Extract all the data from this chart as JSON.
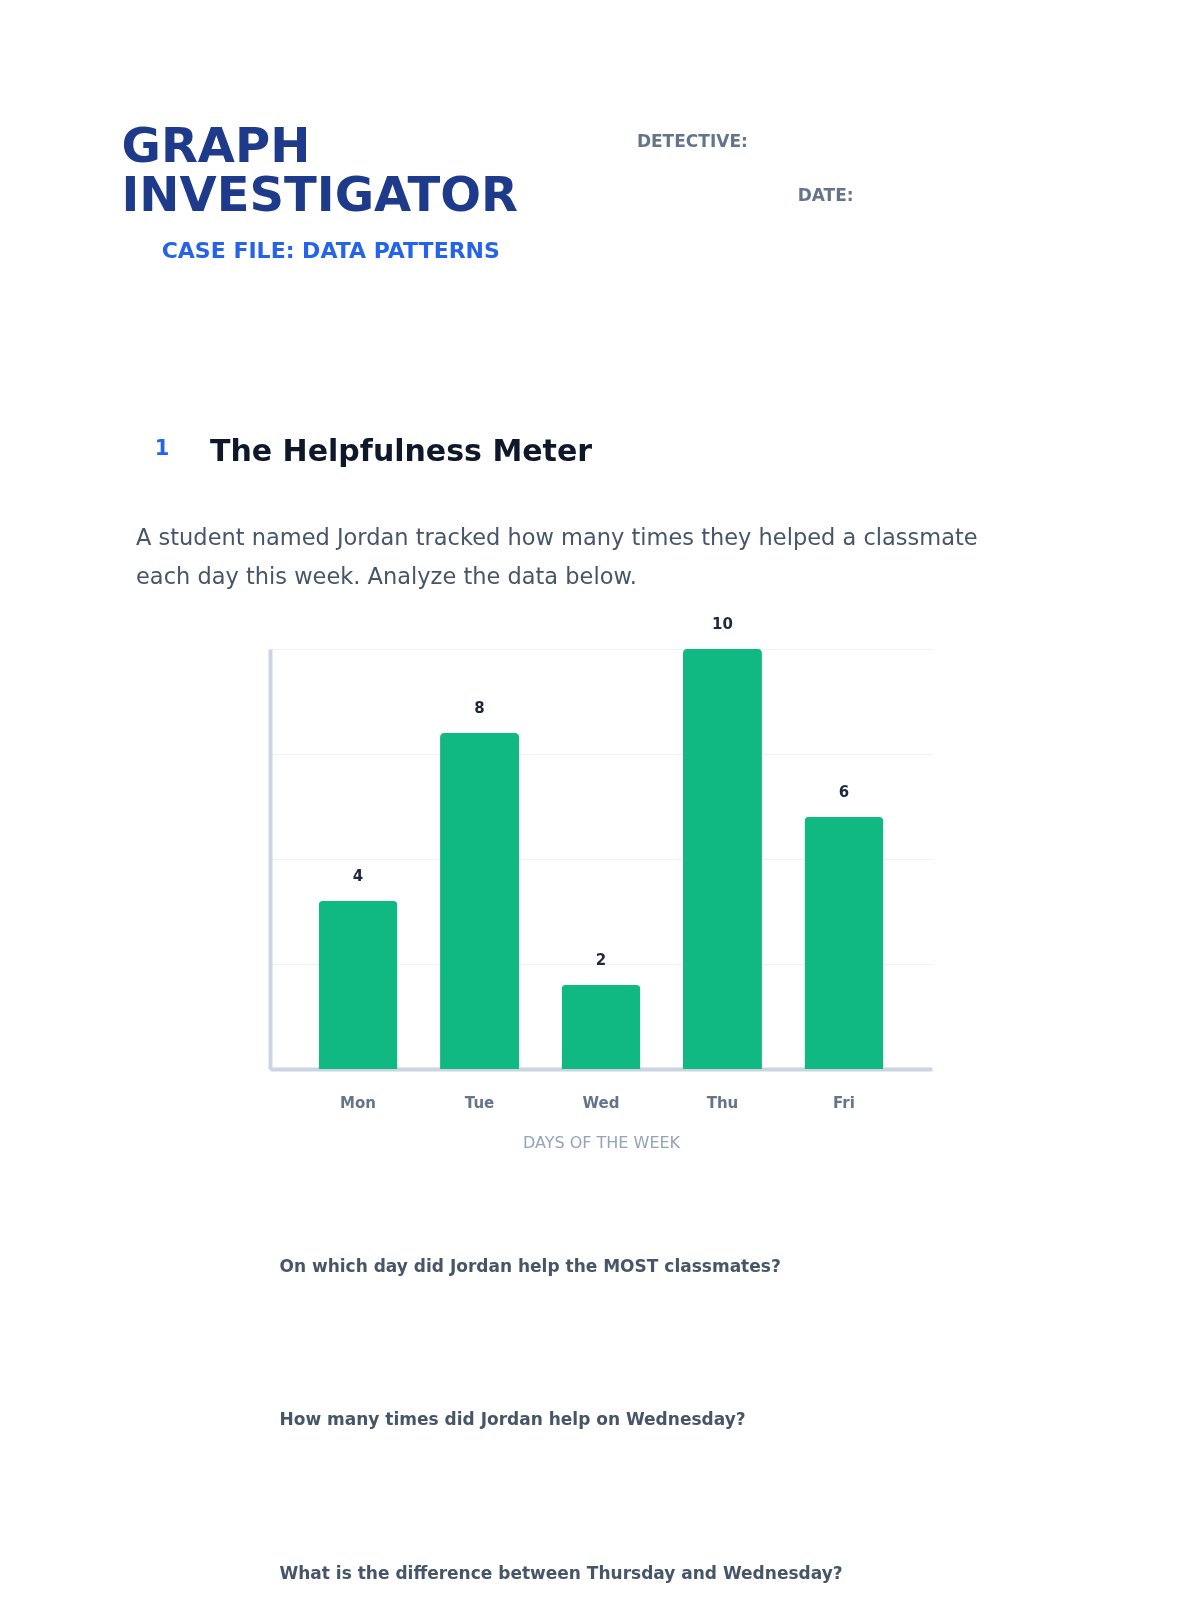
{
  "chart_data": {
    "type": "bar",
    "title": "The Helpfulness Meter",
    "subtitle": "A student named Jordan tracked how many times they helped a classmate each day this week. Analyze the data below.",
    "xlabel": "DAYS OF THE WEEK",
    "categories": [
      "Mon",
      "Tue",
      "Wed",
      "Thu",
      "Fri"
    ],
    "values": [
      4,
      8,
      2,
      10,
      6
    ],
    "color": "#10b981",
    "ylim": [
      0,
      10
    ],
    "yticks": [
      {
        "value": 0,
        "label": null
      },
      {
        "value": 2.5,
        "label": null
      },
      {
        "value": 5,
        "label": null
      },
      {
        "value": 7.5,
        "label": null
      },
      {
        "value": 10,
        "label": null
      }
    ],
    "grid": "y",
    "tick_labels": "x",
    "data_labels": true,
    "annotations": [
      "GRAPH INVESTIGATOR",
      "CASE FILE: DATA PATTERNS",
      "DETECTIVE:",
      "DATE:",
      "1",
      "On which day did Jordan help the MOST classmates?",
      "How many times did Jordan help on Wednesday?",
      "What is the difference between Thursday and Wednesday?"
    ]
  }
}
